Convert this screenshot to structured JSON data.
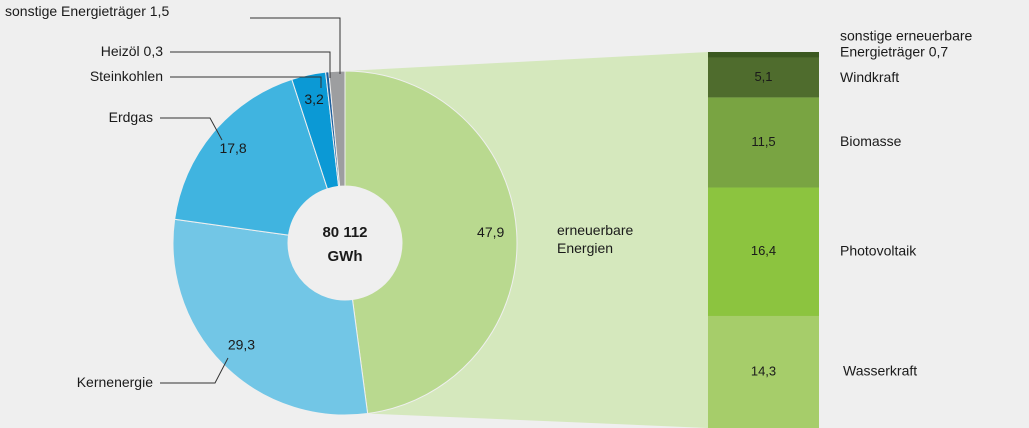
{
  "chart_data": [
    {
      "type": "pie",
      "categories": [
        "erneuerbare Energien",
        "Kernenergie",
        "Erdgas",
        "Steinkohlen",
        "Heizöl",
        "sonstige Energieträger"
      ],
      "values": [
        47.9,
        29.3,
        17.8,
        3.2,
        0.3,
        1.5
      ],
      "value_labels": [
        "47,9",
        "29,3",
        "17,8",
        "3,2",
        "0,3",
        "1,5"
      ],
      "colors": [
        "#b9d98f",
        "#72c6e6",
        "#40b4e0",
        "#0b99d5",
        "#1d5f9e",
        "#9d9ea0"
      ],
      "total": 80112,
      "total_label": "80 112",
      "total_unit": "GWh"
    },
    {
      "type": "stacked_bar",
      "categories": [
        "Wasserkraft",
        "Photovoltaik",
        "Biomasse",
        "Windkraft",
        "sonstige erneuerbare Energieträger"
      ],
      "values": [
        14.3,
        16.4,
        11.5,
        5.1,
        0.7
      ],
      "value_labels": [
        "14,3",
        "16,4",
        "11,5",
        "5,1",
        "0,7"
      ],
      "colors": [
        "#a6cd6a",
        "#8cc43f",
        "#79a442",
        "#4f6c2d",
        "#3b5820"
      ]
    }
  ]
}
